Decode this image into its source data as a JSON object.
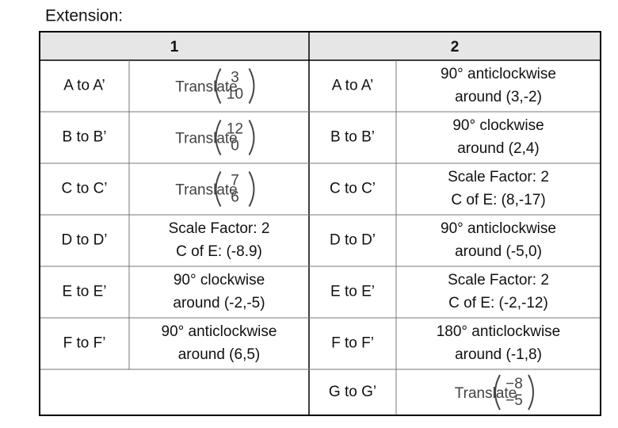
{
  "title": "Extension:",
  "table": {
    "headers": [
      "1",
      "2"
    ],
    "rows": [
      {
        "left_label": "A to A’",
        "left": {
          "text": "Translate",
          "vector": [
            "3",
            "10"
          ]
        },
        "right_label": "A to A’",
        "right": {
          "lines": [
            "90° anticlockwise",
            "around (3,-2)"
          ]
        }
      },
      {
        "left_label": "B to B’",
        "left": {
          "text": "Translate",
          "vector": [
            "12",
            "0"
          ]
        },
        "right_label": "B to B’",
        "right": {
          "lines": [
            "90° clockwise",
            "around (2,4)"
          ]
        }
      },
      {
        "left_label": "C to C’",
        "left": {
          "text": "Translate",
          "vector": [
            "7",
            "6"
          ]
        },
        "right_label": "C to C’",
        "right": {
          "lines": [
            "Scale Factor: 2",
            "C of E: (8,-17)"
          ]
        }
      },
      {
        "left_label": "D to D’",
        "left": {
          "lines": [
            "Scale Factor: 2",
            "C of E: (-8.9)"
          ]
        },
        "right_label": "D to D’",
        "right": {
          "lines": [
            "90° anticlockwise",
            "around (-5,0)"
          ]
        }
      },
      {
        "left_label": "E to E’",
        "left": {
          "lines": [
            "90° clockwise",
            "around (-2,-5)"
          ]
        },
        "right_label": "E to E’",
        "right": {
          "lines": [
            "Scale Factor: 2",
            "C of E: (-2,-12)"
          ]
        }
      },
      {
        "left_label": "F to F’",
        "left": {
          "lines": [
            "90° anticlockwise",
            "around (6,5)"
          ]
        },
        "right_label": "F to F’",
        "right": {
          "lines": [
            "180° anticlockwise",
            "around (-1,8)"
          ]
        }
      },
      {
        "right_label": "G to G’",
        "right": {
          "text": "Translate",
          "vector": [
            "−8",
            "−5"
          ]
        }
      }
    ]
  }
}
